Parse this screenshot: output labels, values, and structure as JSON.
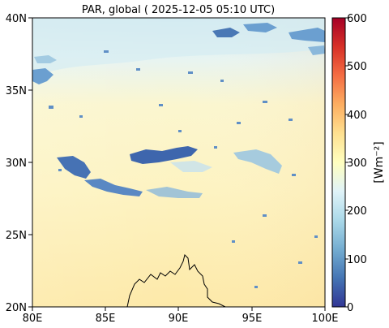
{
  "title": "PAR, global ( 2025-12-05 05:10 UTC)",
  "map": {
    "x_ticks": [
      "80E",
      "85E",
      "90E",
      "95E",
      "100E"
    ],
    "y_ticks": [
      "20N",
      "25N",
      "30N",
      "35N",
      "40N"
    ],
    "lon_range": [
      80,
      100
    ],
    "lat_range": [
      20,
      40
    ]
  },
  "colorbar": {
    "label": "[Wm⁻²]",
    "ticks": [
      "0",
      "100",
      "200",
      "300",
      "400",
      "500",
      "600"
    ],
    "range": [
      0,
      600
    ],
    "colors": [
      "#313695",
      "#4575b4",
      "#74add1",
      "#abd9e9",
      "#e0f3f8",
      "#ffffbf",
      "#fee090",
      "#fdae61",
      "#f46d43",
      "#d73027",
      "#a50026"
    ]
  }
}
